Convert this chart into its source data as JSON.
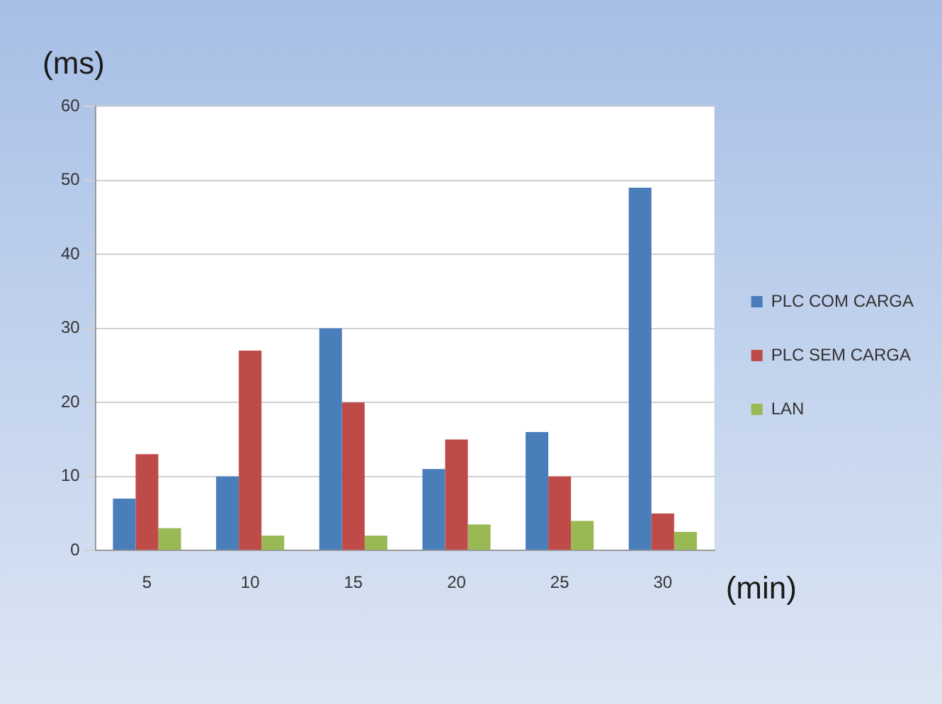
{
  "chart_data": {
    "type": "bar",
    "ylabel": "(ms)",
    "xlabel": "(min)",
    "categories": [
      "5",
      "10",
      "15",
      "20",
      "25",
      "30"
    ],
    "series": [
      {
        "name": "PLC COM CARGA",
        "color": "#4a7ebb",
        "values": [
          7,
          10,
          30,
          11,
          16,
          49
        ]
      },
      {
        "name": "PLC SEM CARGA",
        "color": "#be4b48",
        "values": [
          13,
          27,
          20,
          15,
          10,
          5
        ]
      },
      {
        "name": "LAN",
        "color": "#98b954",
        "values": [
          3,
          2,
          2,
          3.5,
          4,
          2.5
        ]
      }
    ],
    "ylim": [
      0,
      60
    ],
    "yticks": [
      0,
      10,
      20,
      30,
      40,
      50,
      60
    ],
    "grid": "y",
    "legend": "right"
  }
}
